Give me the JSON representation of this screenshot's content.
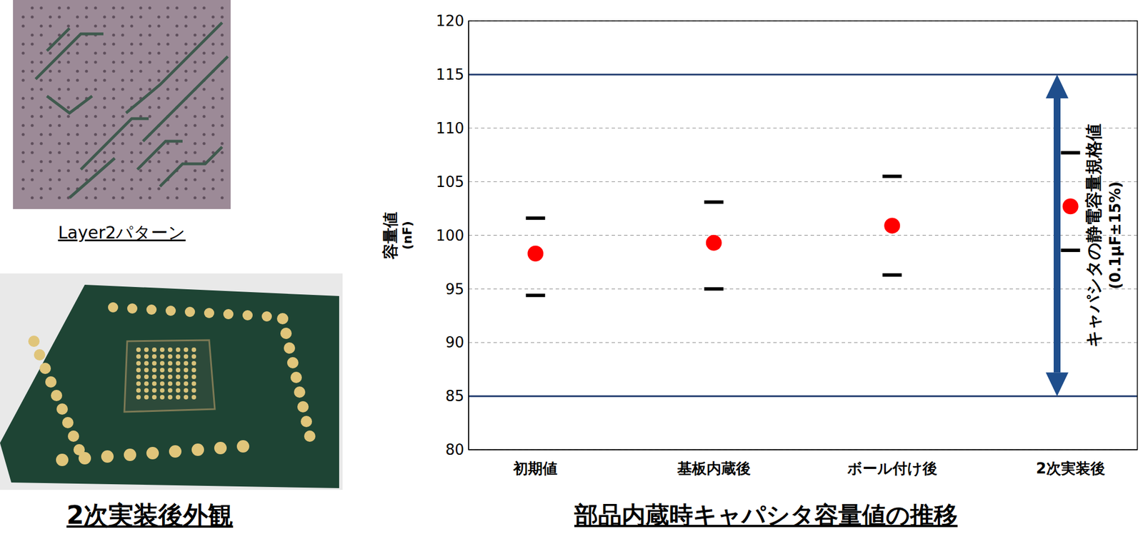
{
  "images": [
    {
      "caption": "Layer2パターン"
    },
    {
      "caption": "2次実装後外観"
    }
  ],
  "chart_data": {
    "type": "scatter",
    "title": "部品内蔵時キャパシタ容量値の推移",
    "y_label": [
      "容量値",
      "(nF)"
    ],
    "categories": [
      "初期値",
      "基板内蔵後",
      "ボール付け後",
      "2次実装後"
    ],
    "series": [
      {
        "values": [
          101.6,
          103.1,
          105.5,
          107.7
        ],
        "color": "#000000",
        "marker": "dash"
      },
      {
        "values": [
          98.3,
          99.3,
          100.9,
          102.7
        ],
        "color": "#ff0000",
        "marker": "circle"
      },
      {
        "values": [
          94.4,
          95.0,
          96.3,
          98.6
        ],
        "color": "#000000",
        "marker": "dash"
      }
    ],
    "ylim": [
      80,
      120
    ],
    "yticks": [
      80,
      85,
      90,
      95,
      100,
      105,
      110,
      115,
      120
    ],
    "grid": true,
    "reference_lines": [
      {
        "value": 115,
        "color": "#1f3a6e"
      },
      {
        "value": 85,
        "color": "#1f3a6e"
      }
    ],
    "annotations": [
      {
        "lines": [
          "キャパシタの静電容量規格値",
          "(0.1μF±15%)"
        ],
        "range": [
          85,
          115
        ],
        "color": "#1f4e8c"
      }
    ]
  }
}
